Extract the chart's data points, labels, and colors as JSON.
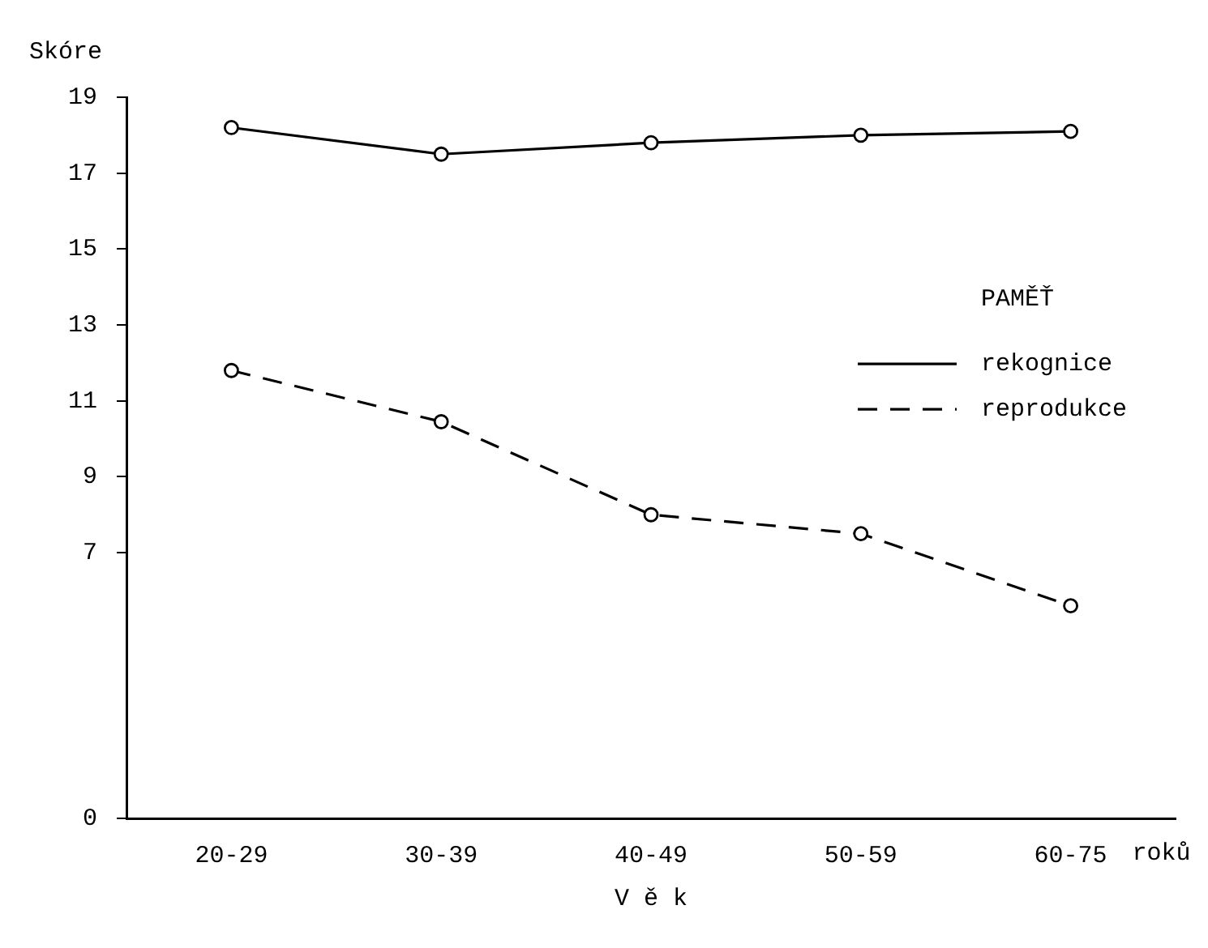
{
  "chart_data": {
    "type": "line",
    "ylabel": "Skóre",
    "xlabel": "V ě k",
    "legend_title": "PAMĚŤ",
    "annotations": [
      "roků"
    ],
    "categories": [
      "20-29",
      "30-39",
      "40-49",
      "50-59",
      "60-75"
    ],
    "series": [
      {
        "name": "rekognice",
        "color": "#000000",
        "line_style": "solid",
        "values": [
          18.2,
          17.5,
          17.8,
          18.0,
          18.1
        ]
      },
      {
        "name": "reprodukce",
        "color": "#000000",
        "line_style": "dashed",
        "values": [
          11.8,
          10.45,
          8.0,
          7.5,
          5.6
        ]
      }
    ],
    "ylim": [
      0,
      19
    ],
    "yticks": [
      0,
      7,
      9,
      11,
      13,
      15,
      17,
      19
    ],
    "grid": false,
    "legend": "right",
    "marker": "circle"
  }
}
